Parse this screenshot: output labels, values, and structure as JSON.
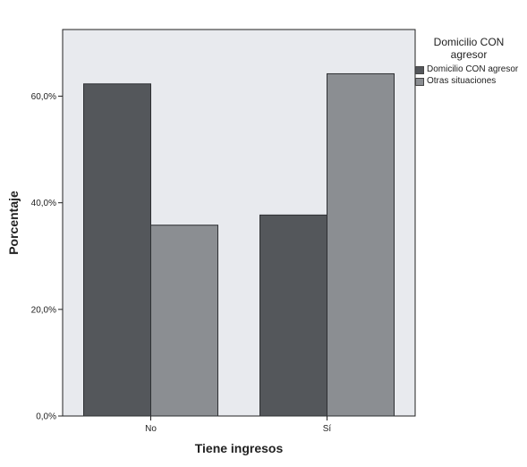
{
  "chart_data": {
    "type": "bar",
    "xlabel": "Tiene ingresos",
    "ylabel": "Porcentaje",
    "categories": [
      "No",
      "Sí"
    ],
    "series": [
      {
        "name": "Domicilio CON agresor",
        "values": [
          62.3,
          37.7
        ]
      },
      {
        "name": "Otras situaciones",
        "values": [
          35.8,
          64.2
        ]
      }
    ],
    "ylim": [
      0,
      72.5
    ],
    "yticks": [
      0,
      20,
      40,
      60
    ],
    "ytick_labels": [
      "0,0%",
      "20,0%",
      "40,0%",
      "60,0%"
    ],
    "legend": {
      "title": "Domicilio CON agresor",
      "placement": "right"
    },
    "colors": {
      "plot_background": "#e8eaee",
      "series": [
        "#54575b",
        "#8b8e92"
      ],
      "bar_stroke": "#2e3033",
      "axis": "#222222"
    }
  }
}
